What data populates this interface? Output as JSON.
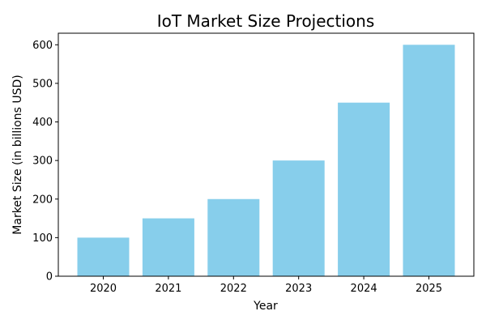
{
  "chart_data": {
    "type": "bar",
    "title": "IoT Market Size Projections",
    "xlabel": "Year",
    "ylabel": "Market Size (in billions USD)",
    "categories": [
      "2020",
      "2021",
      "2022",
      "2023",
      "2024",
      "2025"
    ],
    "values": [
      100,
      150,
      200,
      300,
      450,
      600
    ],
    "ylim": [
      0,
      630
    ],
    "yticks": [
      0,
      100,
      200,
      300,
      400,
      500,
      600
    ],
    "grid": false,
    "legend": null,
    "bar_color": "#87ceeb"
  }
}
